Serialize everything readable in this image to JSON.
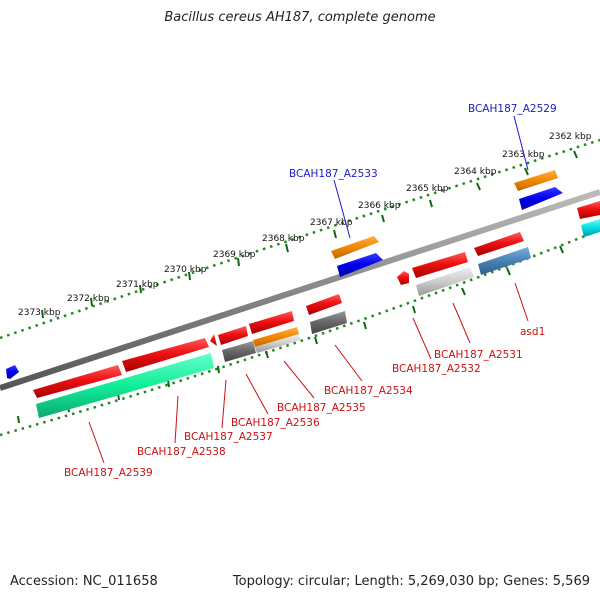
{
  "title": "Bacillus cereus AH187, complete genome",
  "footer": {
    "accession": "Accession: NC_011658",
    "stats": "Topology: circular; Length: 5,269,030 bp; Genes: 5,569"
  },
  "colors": {
    "forward_label": "#1a1acc",
    "reverse_label": "#cc1111",
    "scale_dots": "#228822",
    "backbone": "#888888"
  },
  "scale": {
    "ticks": [
      {
        "label": "2362 kbp"
      },
      {
        "label": "2363 kbp"
      },
      {
        "label": "2364 kbp"
      },
      {
        "label": "2365 kbp"
      },
      {
        "label": "2366 kbp"
      },
      {
        "label": "2367 kbp"
      },
      {
        "label": "2368 kbp"
      },
      {
        "label": "2369 kbp"
      },
      {
        "label": "2370 kbp"
      },
      {
        "label": "2371 kbp"
      },
      {
        "label": "2372 kbp"
      },
      {
        "label": "2373 kbp"
      }
    ]
  },
  "genes": {
    "forward_labels": [
      {
        "name": "BCAH187_A2529"
      },
      {
        "name": "BCAH187_A2533"
      }
    ],
    "reverse_labels": [
      {
        "name": "asd1"
      },
      {
        "name": "BCAH187_A2531"
      },
      {
        "name": "BCAH187_A2532"
      },
      {
        "name": "BCAH187_A2534"
      },
      {
        "name": "BCAH187_A2535"
      },
      {
        "name": "BCAH187_A2536"
      },
      {
        "name": "BCAH187_A2537"
      },
      {
        "name": "BCAH187_A2538"
      },
      {
        "name": "BCAH187_A2539"
      }
    ]
  }
}
